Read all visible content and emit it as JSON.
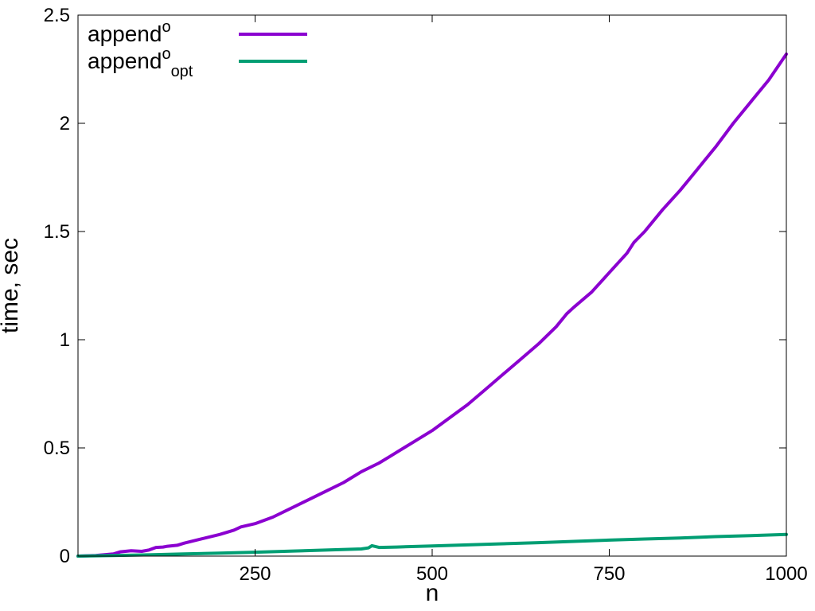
{
  "chart_data": {
    "type": "line",
    "title": "",
    "xlabel": "n",
    "ylabel": "time, sec",
    "xlim": [
      0,
      1000
    ],
    "ylim": [
      0,
      2.5
    ],
    "x_ticks": [
      250,
      500,
      750,
      1000
    ],
    "y_ticks": [
      0,
      0.5,
      1,
      1.5,
      2,
      2.5
    ],
    "x_tick_labels": [
      "250",
      "500",
      "750",
      "1000"
    ],
    "y_tick_labels": [
      "0",
      "0.5",
      "1",
      "1.5",
      "2",
      "2.5"
    ],
    "legend_position": "top-left",
    "grid": false,
    "series": [
      {
        "name": "append",
        "name_superscript": "o",
        "name_subscript": "",
        "color": "#8b00d0",
        "x": [
          0,
          25,
          50,
          60,
          75,
          90,
          100,
          110,
          120,
          125,
          140,
          150,
          175,
          200,
          220,
          230,
          250,
          275,
          300,
          325,
          350,
          375,
          400,
          425,
          440,
          450,
          475,
          500,
          525,
          550,
          575,
          600,
          625,
          650,
          675,
          690,
          700,
          725,
          750,
          775,
          785,
          800,
          825,
          850,
          875,
          885,
          900,
          925,
          950,
          975,
          1000
        ],
        "values": [
          0,
          0.003,
          0.01,
          0.02,
          0.025,
          0.022,
          0.028,
          0.04,
          0.042,
          0.045,
          0.05,
          0.06,
          0.08,
          0.1,
          0.12,
          0.135,
          0.15,
          0.18,
          0.22,
          0.26,
          0.3,
          0.34,
          0.39,
          0.43,
          0.46,
          0.48,
          0.53,
          0.58,
          0.64,
          0.7,
          0.77,
          0.84,
          0.91,
          0.98,
          1.06,
          1.12,
          1.15,
          1.22,
          1.31,
          1.4,
          1.45,
          1.5,
          1.6,
          1.69,
          1.79,
          1.83,
          1.89,
          2.0,
          2.1,
          2.2,
          2.32
        ]
      },
      {
        "name": "append",
        "name_superscript": "o",
        "name_subscript": "opt",
        "color": "#009e73",
        "x": [
          0,
          50,
          100,
          150,
          200,
          250,
          300,
          350,
          400,
          410,
          415,
          425,
          450,
          500,
          550,
          600,
          650,
          700,
          750,
          800,
          850,
          900,
          950,
          1000
        ],
        "values": [
          0,
          0.003,
          0.006,
          0.01,
          0.014,
          0.018,
          0.023,
          0.028,
          0.033,
          0.038,
          0.048,
          0.04,
          0.042,
          0.047,
          0.052,
          0.057,
          0.062,
          0.068,
          0.074,
          0.079,
          0.084,
          0.09,
          0.095,
          0.1
        ]
      }
    ]
  }
}
